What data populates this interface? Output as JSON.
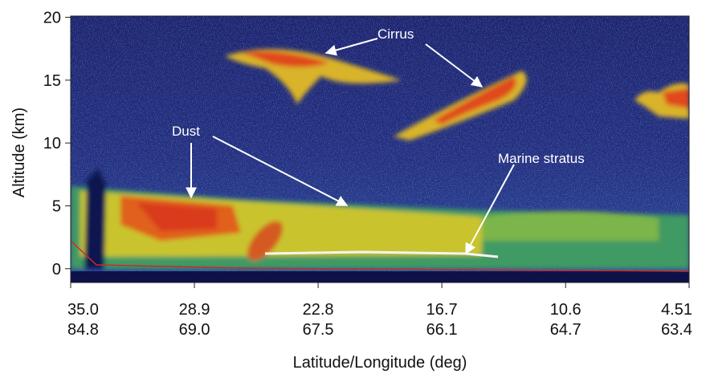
{
  "chart_data": {
    "type": "lidar-curtain",
    "ylabel": "Altitude (km)",
    "xlabel": "Latitude/Longitude (deg)",
    "ylim": [
      -1.1,
      20.1
    ],
    "yticks": [
      0,
      5,
      10,
      15,
      20
    ],
    "xlim": [
      35.0,
      4.51
    ],
    "xticks": [
      {
        "value": 35.0,
        "label": "35.0"
      },
      {
        "value": 28.9,
        "label": "28.9"
      },
      {
        "value": 22.8,
        "label": "22.8"
      },
      {
        "value": 16.7,
        "label": "16.7"
      },
      {
        "value": 10.6,
        "label": "10.6"
      },
      {
        "value": 4.51,
        "label": "4.51"
      }
    ],
    "longitude_labels": [
      "84.8",
      "69.0",
      "67.5",
      "66.1",
      "64.7",
      "63.4"
    ],
    "annotations": [
      "Cirrus",
      "Dust",
      "Marine stratus"
    ]
  }
}
